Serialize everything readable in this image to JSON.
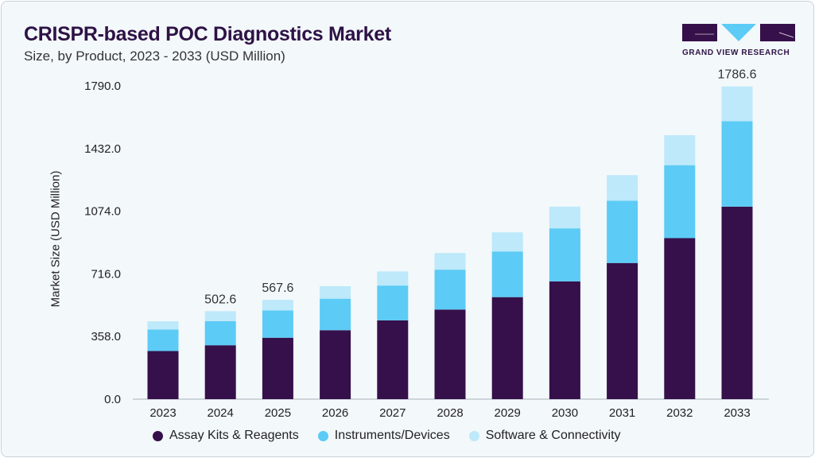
{
  "header": {
    "title": "CRISPR-based POC Diagnostics Market",
    "subtitle": "Size, by Product, 2023 - 2033 (USD Million)"
  },
  "logo": {
    "text": "GRAND VIEW RESEARCH"
  },
  "colors": {
    "assay": "#36104a",
    "instruments": "#5ccbf6",
    "software": "#bde9fa"
  },
  "chart_data": {
    "type": "bar",
    "stacked": true,
    "title": "CRISPR-based POC Diagnostics Market",
    "ylabel": "Market Size (USD Million)",
    "xlabel": "",
    "ylim": [
      0,
      1790
    ],
    "yticks": [
      "0.0",
      "358.0",
      "716.0",
      "1074.0",
      "1432.0",
      "1790.0"
    ],
    "categories": [
      "2023",
      "2024",
      "2025",
      "2026",
      "2027",
      "2028",
      "2029",
      "2030",
      "2031",
      "2032",
      "2033"
    ],
    "series": [
      {
        "name": "Assay Kits & Reagents",
        "values": [
          275,
          308,
          351,
          394,
          450,
          512,
          583,
          673,
          778,
          920,
          1100
        ]
      },
      {
        "name": "Instruments/Devices",
        "values": [
          123,
          138,
          156,
          180,
          199,
          228,
          261,
          303,
          356,
          417,
          488
        ]
      },
      {
        "name": "Software & Connectivity",
        "values": [
          47,
          56.6,
          60.6,
          71,
          81,
          95,
          109,
          124,
          146,
          171,
          198.6
        ]
      }
    ],
    "data_labels": {
      "2024": "502.6",
      "2025": "567.6",
      "2033": "1786.6"
    },
    "legend": "bottom",
    "grid": false
  }
}
